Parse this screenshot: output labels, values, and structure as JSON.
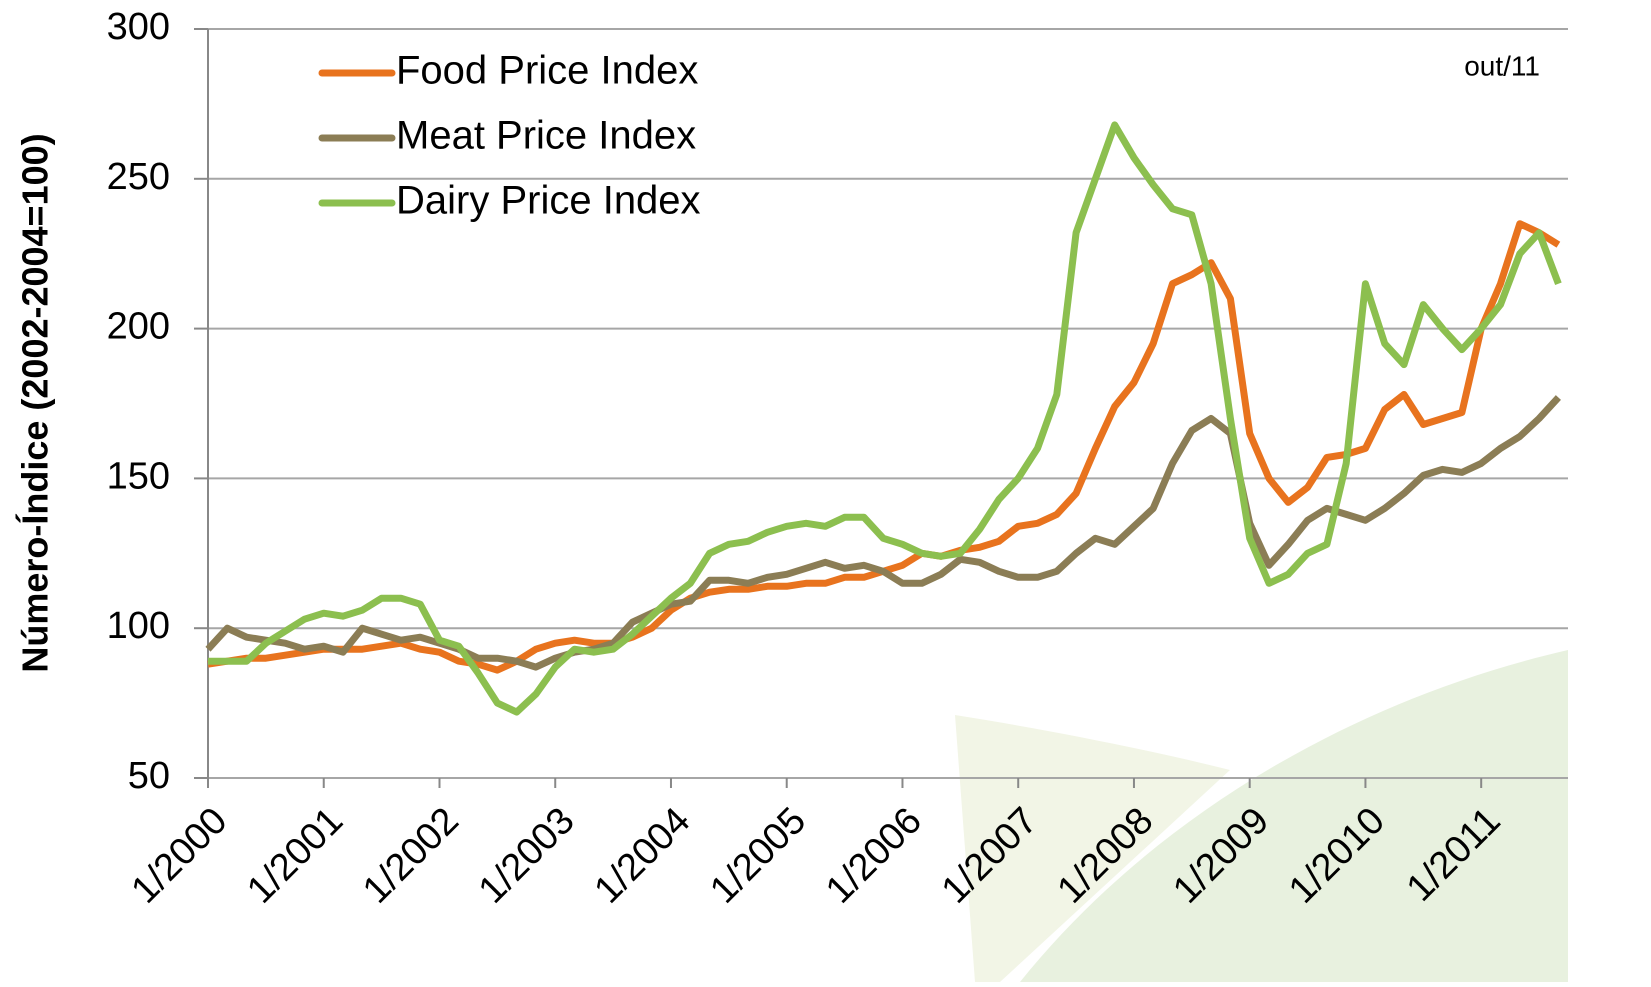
{
  "chart_data": {
    "type": "line",
    "y_label": "Número-Índice (2002-2004=100)",
    "annotation": "out/11",
    "x": [
      0,
      2,
      4,
      6,
      8,
      10,
      12,
      14,
      16,
      18,
      20,
      22,
      24,
      26,
      28,
      30,
      32,
      34,
      36,
      38,
      40,
      42,
      44,
      46,
      48,
      50,
      52,
      54,
      56,
      58,
      60,
      62,
      64,
      66,
      68,
      70,
      72,
      74,
      76,
      78,
      80,
      82,
      84,
      86,
      88,
      90,
      92,
      94,
      96,
      98,
      100,
      102,
      104,
      106,
      108,
      110,
      112,
      114,
      116,
      118,
      120,
      122,
      124,
      126,
      128,
      130,
      132,
      134,
      136,
      138,
      140
    ],
    "series": [
      {
        "name": "Food Price Index",
        "color": "#e8731e",
        "values": [
          88,
          89,
          90,
          90,
          91,
          92,
          93,
          93,
          93,
          94,
          95,
          93,
          92,
          89,
          88,
          86,
          89,
          93,
          95,
          96,
          95,
          95,
          97,
          100,
          106,
          110,
          112,
          113,
          113,
          114,
          114,
          115,
          115,
          117,
          117,
          119,
          121,
          125,
          124,
          126,
          127,
          129,
          134,
          135,
          138,
          145,
          160,
          174,
          182,
          195,
          215,
          218,
          222,
          210,
          165,
          150,
          142,
          147,
          157,
          158,
          160,
          173,
          178,
          168,
          170,
          172,
          200,
          215,
          235,
          232,
          228
        ]
      },
      {
        "name": "Meat Price Index",
        "color": "#8b7d55",
        "values": [
          93,
          100,
          97,
          96,
          95,
          93,
          94,
          92,
          100,
          98,
          96,
          97,
          95,
          93,
          90,
          90,
          89,
          87,
          90,
          92,
          93,
          95,
          102,
          105,
          108,
          109,
          116,
          116,
          115,
          117,
          118,
          120,
          122,
          120,
          121,
          119,
          115,
          115,
          118,
          123,
          122,
          119,
          117,
          117,
          119,
          125,
          130,
          128,
          134,
          140,
          155,
          166,
          170,
          165,
          135,
          121,
          128,
          136,
          140,
          138,
          136,
          140,
          145,
          151,
          153,
          152,
          155,
          160,
          164,
          170,
          177
        ]
      },
      {
        "name": "Dairy Price Index",
        "color": "#8cbf4f",
        "values": [
          89,
          89,
          89,
          95,
          99,
          103,
          105,
          104,
          106,
          110,
          110,
          108,
          96,
          94,
          85,
          75,
          72,
          78,
          87,
          93,
          92,
          93,
          98,
          104,
          110,
          115,
          125,
          128,
          129,
          132,
          134,
          135,
          134,
          137,
          137,
          130,
          128,
          125,
          124,
          125,
          133,
          143,
          150,
          160,
          178,
          232,
          250,
          268,
          257,
          248,
          240,
          238,
          215,
          170,
          130,
          115,
          118,
          125,
          128,
          155,
          215,
          195,
          188,
          208,
          200,
          193,
          200,
          208,
          225,
          232,
          215
        ]
      }
    ],
    "xlim": [
      0,
      141
    ],
    "xticks": [
      {
        "value": 0,
        "label": "1/2000"
      },
      {
        "value": 12,
        "label": "1/2001"
      },
      {
        "value": 24,
        "label": "1/2002"
      },
      {
        "value": 36,
        "label": "1/2003"
      },
      {
        "value": 48,
        "label": "1/2004"
      },
      {
        "value": 60,
        "label": "1/2005"
      },
      {
        "value": 72,
        "label": "1/2006"
      },
      {
        "value": 84,
        "label": "1/2007"
      },
      {
        "value": 96,
        "label": "1/2008"
      },
      {
        "value": 108,
        "label": "1/2009"
      },
      {
        "value": 120,
        "label": "1/2010"
      },
      {
        "value": 132,
        "label": "1/2011"
      }
    ],
    "ylim": [
      50,
      300
    ],
    "yticks": [
      50,
      100,
      150,
      200,
      250,
      300
    ],
    "grid": true,
    "legend": "top-left"
  }
}
